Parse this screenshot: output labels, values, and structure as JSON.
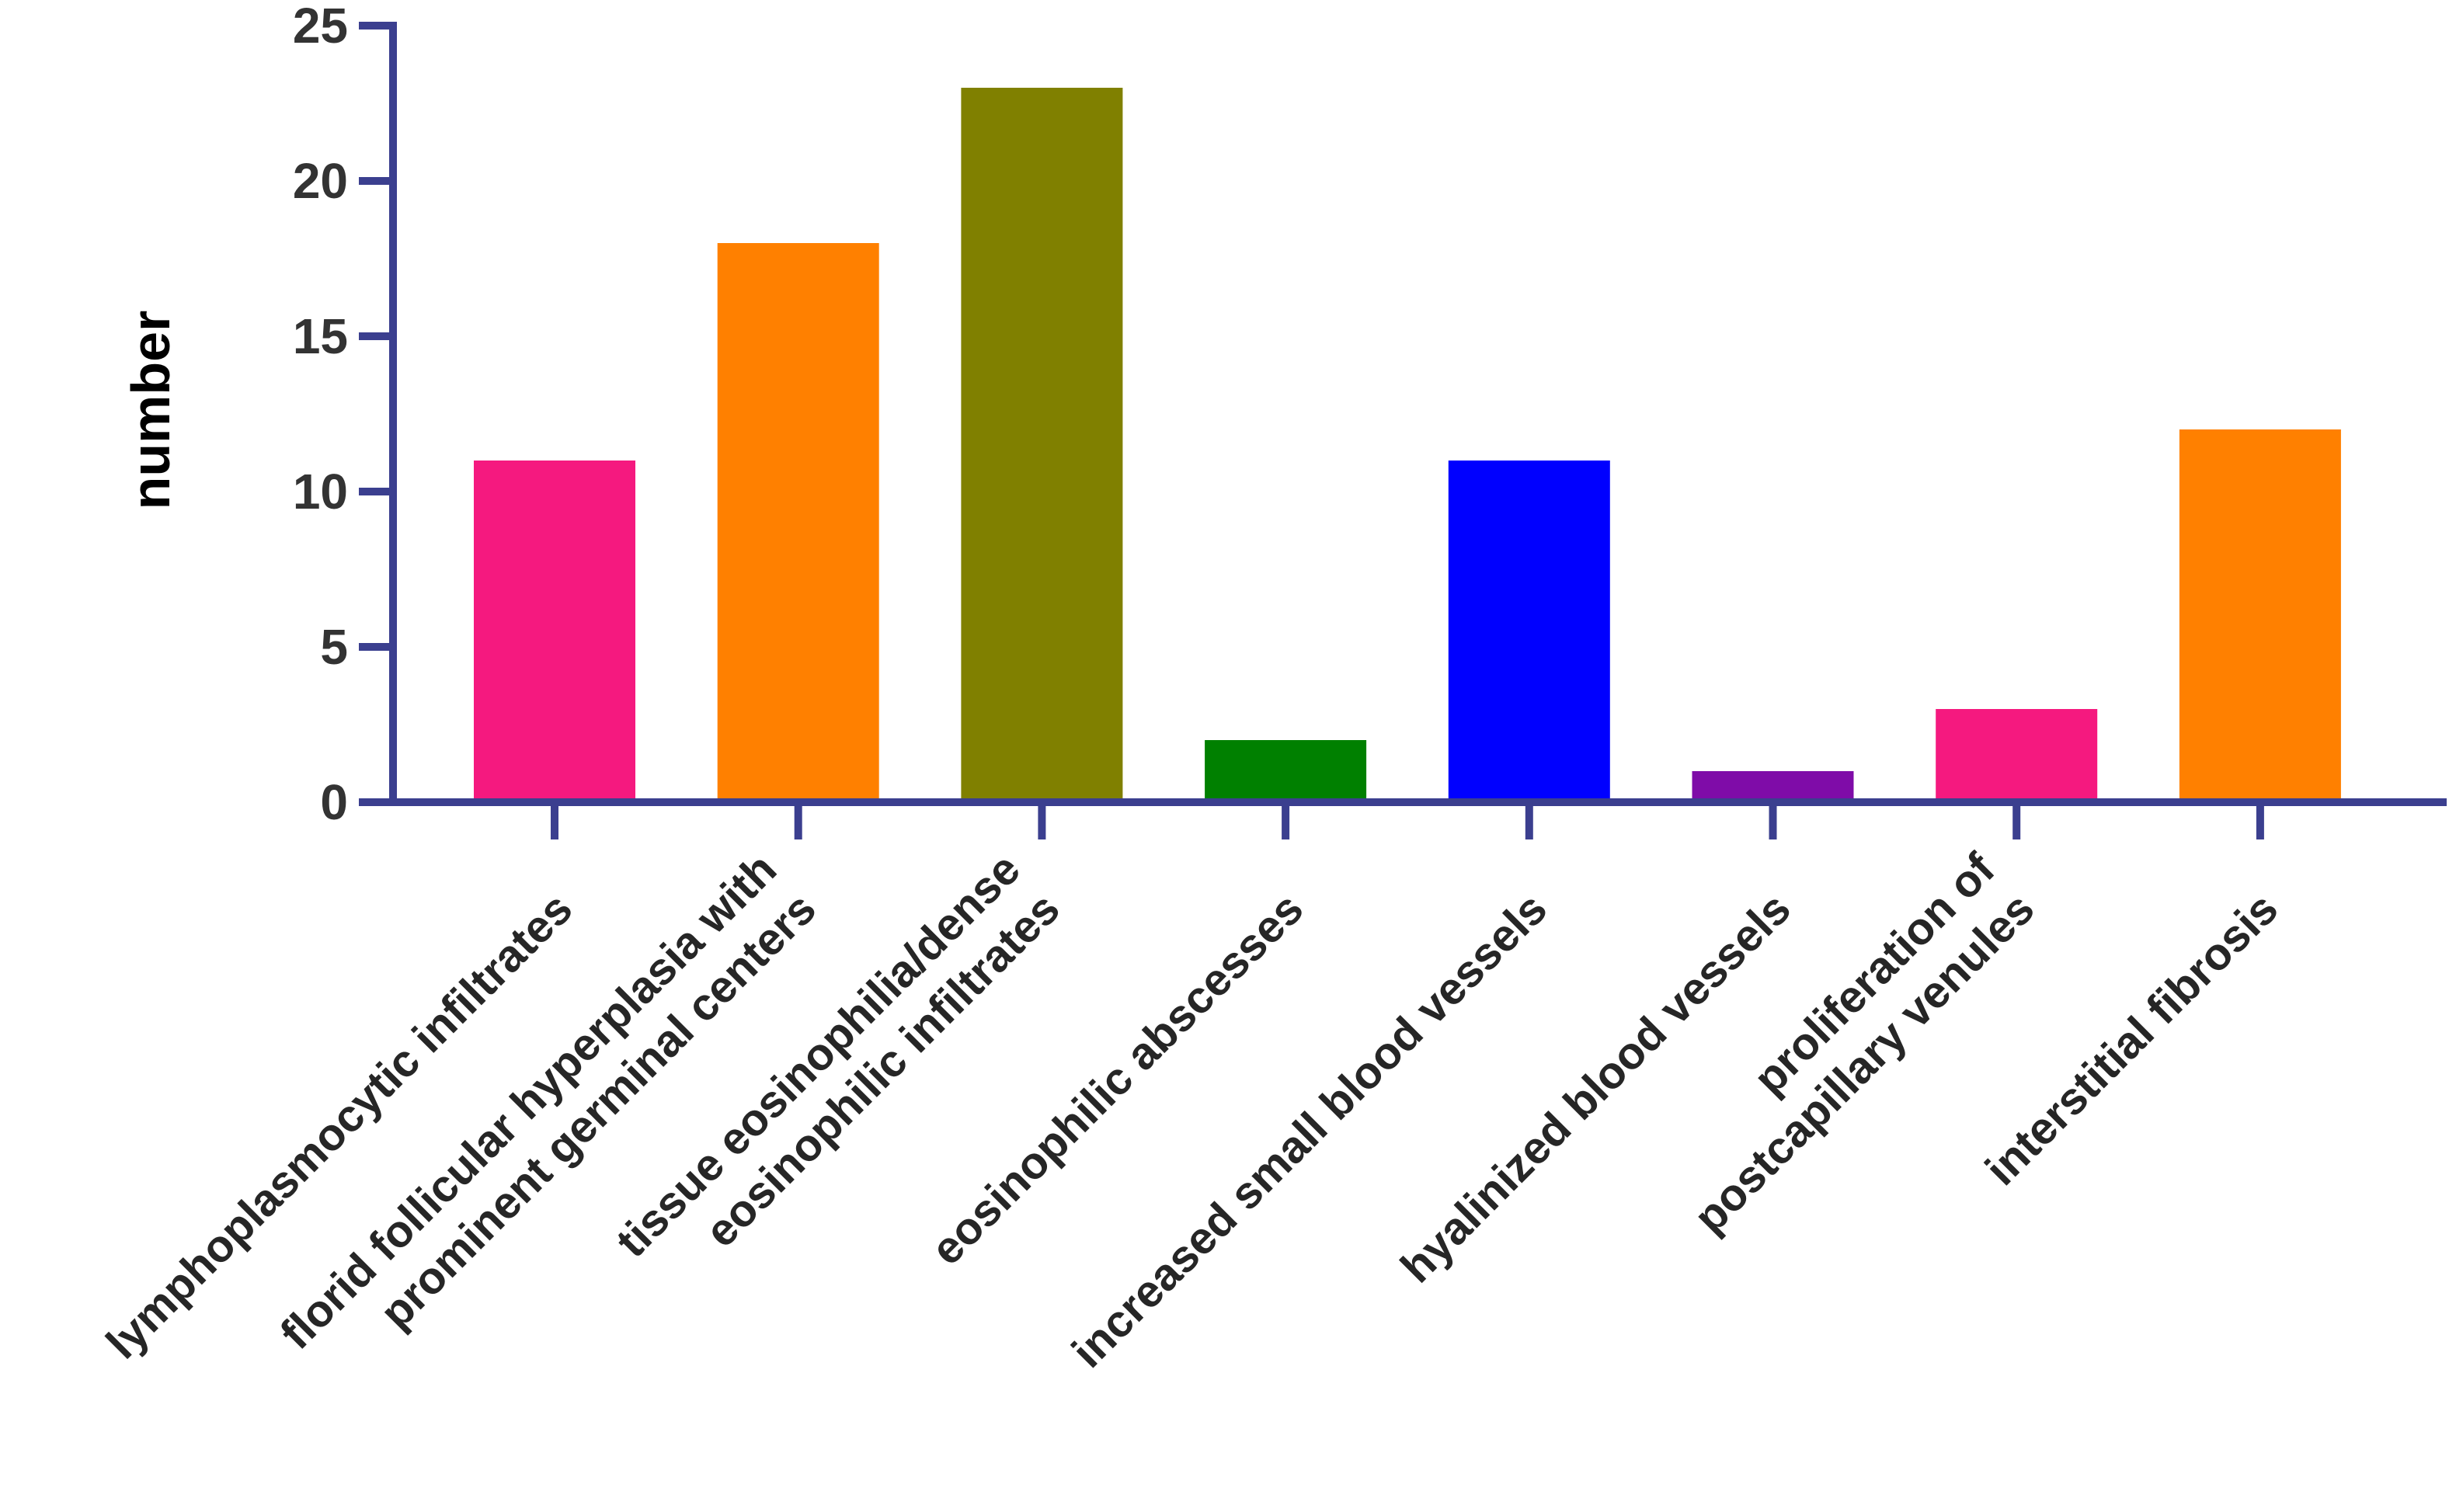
{
  "chart_data": {
    "type": "bar",
    "title": "",
    "xlabel": "",
    "ylabel": "number",
    "ylim": [
      0,
      25
    ],
    "yticks": [
      "0",
      "5",
      "10",
      "15",
      "20",
      "25"
    ],
    "grid": false,
    "axis_color": "#3b3f8f",
    "categories": [
      [
        "lymphoplasmocytic infiltrates"
      ],
      [
        "florid follicular hyperplasia with",
        "prominent germinal centers"
      ],
      [
        "tissue eosinophilia/dense",
        "eosinophilic infiltrates"
      ],
      [
        "eosinophilic abscesses"
      ],
      [
        "increased small blood vessels"
      ],
      [
        "hyalinized blood vessels"
      ],
      [
        "proliferation of",
        "postcapillary venules"
      ],
      [
        "interstitial fibrosis"
      ]
    ],
    "values": [
      11,
      18,
      23,
      2,
      11,
      1,
      3,
      12
    ],
    "colors": [
      "#f5197f",
      "#ff8000",
      "#808000",
      "#008000",
      "#0000ff",
      "#7f0ca8",
      "#f5197f",
      "#ff8000"
    ]
  }
}
